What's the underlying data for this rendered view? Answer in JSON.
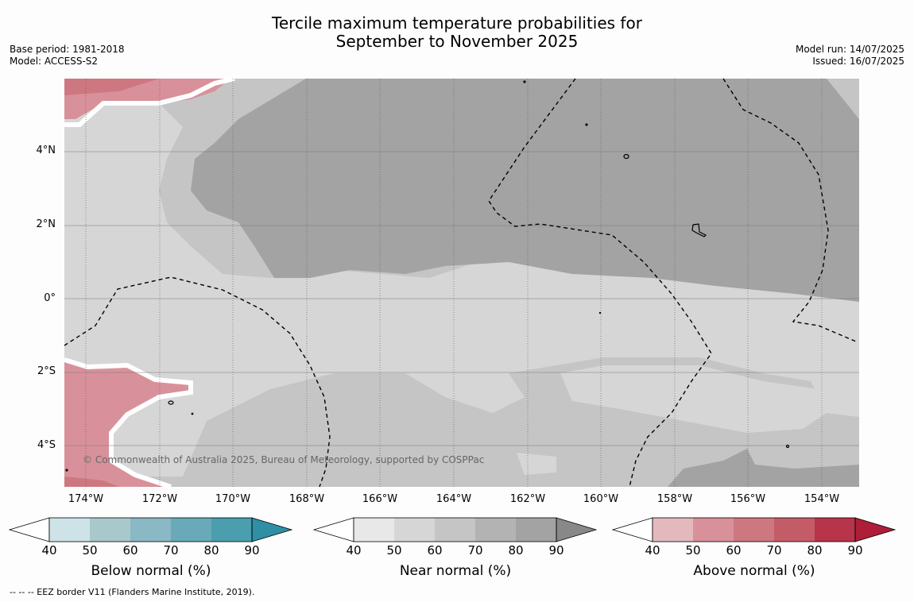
{
  "header": {
    "title_line1": "Tercile maximum temperature probabilities for",
    "title_line2": "September to November 2025",
    "base_period": "Base period: 1981-2018",
    "model": "Model: ACCESS-S2",
    "model_run": "Model run: 14/07/2025",
    "issued": "Issued: 16/07/2025"
  },
  "map": {
    "lat_labels": [
      "4°N",
      "2°N",
      "0°",
      "2°S",
      "4°S"
    ],
    "lon_labels": [
      "174°W",
      "172°W",
      "170°W",
      "168°W",
      "166°W",
      "164°W",
      "162°W",
      "160°W",
      "158°W",
      "156°W",
      "154°W"
    ],
    "copyright": "© Commonwealth of Australia 2025, Bureau of Meteorology, supported by COSPPac"
  },
  "colorbars": [
    {
      "title": "Below normal (%)",
      "ticks": [
        "40",
        "50",
        "60",
        "70",
        "80",
        "90"
      ],
      "colors": [
        "#cde3e8",
        "#a8c8cc",
        "#8ab8c4",
        "#6aaab8",
        "#4a9eae",
        "#2f8fa4"
      ]
    },
    {
      "title": "Near normal (%)",
      "ticks": [
        "40",
        "50",
        "60",
        "70",
        "80",
        "90"
      ],
      "colors": [
        "#e8e8e8",
        "#d6d6d6",
        "#c5c5c5",
        "#b3b3b3",
        "#a3a3a3",
        "#888888"
      ]
    },
    {
      "title": "Above normal (%)",
      "ticks": [
        "40",
        "50",
        "60",
        "70",
        "80",
        "90"
      ],
      "colors": [
        "#e4b9be",
        "#d8919a",
        "#cd7880",
        "#c45c68",
        "#b8344a",
        "#ae1e38"
      ]
    }
  ],
  "footer": {
    "legend_note": "--  --  -- EEZ border V11 (Flanders Marine Institute, 2019)."
  }
}
